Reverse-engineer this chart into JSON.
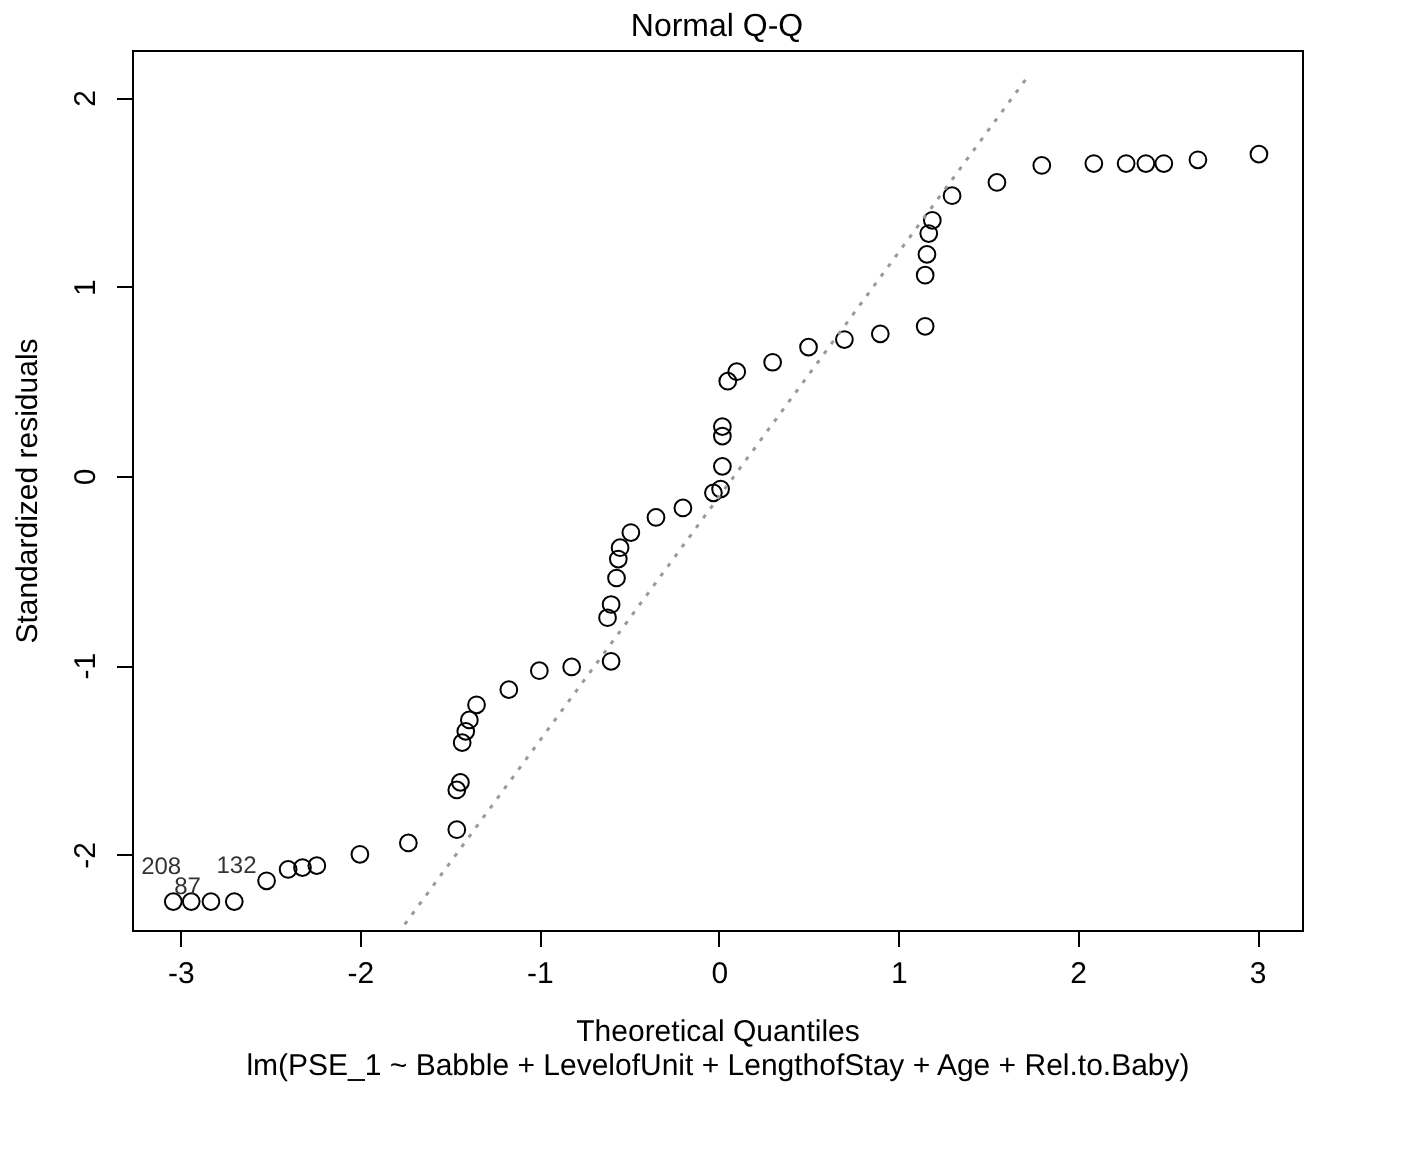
{
  "chart_data": {
    "type": "scatter",
    "title": "Normal Q-Q",
    "xlabel": "Theoretical Quantiles",
    "ylabel": "Standardized residuals",
    "xlim": [
      -3.27,
      3.25
    ],
    "ylim": [
      -2.4,
      2.25
    ],
    "xticks": [
      -3,
      -2,
      -1,
      0,
      1,
      2,
      3
    ],
    "yticks": [
      -2,
      -1,
      0,
      1,
      2
    ],
    "grid": false,
    "legend": false,
    "marker": "circle",
    "series": [
      {
        "color": "#000000",
        "x": [
          -3.04,
          -2.94,
          -2.83,
          -2.7,
          -2.52,
          -2.4,
          -2.32,
          -2.24,
          -2.0,
          -1.73,
          -1.46,
          -1.46,
          -1.44,
          -1.43,
          -1.41,
          -1.39,
          -1.35,
          -1.17,
          -1.0,
          -0.82,
          -0.6,
          -0.62,
          -0.6,
          -0.57,
          -0.56,
          -0.55,
          -0.49,
          -0.35,
          -0.2,
          -0.03,
          0.01,
          0.02,
          0.02,
          0.02,
          0.05,
          0.1,
          0.3,
          0.5,
          0.7,
          0.9,
          1.15,
          1.15,
          1.16,
          1.17,
          1.19,
          1.3,
          1.55,
          1.8,
          2.09,
          2.27,
          2.38,
          2.48,
          2.67,
          3.01
        ],
        "values": [
          -2.25,
          -2.25,
          -2.25,
          -2.25,
          -2.14,
          -2.08,
          -2.07,
          -2.06,
          -2.0,
          -1.94,
          -1.87,
          -1.66,
          -1.62,
          -1.41,
          -1.35,
          -1.29,
          -1.21,
          -1.13,
          -1.03,
          -1.01,
          -0.98,
          -0.75,
          -0.68,
          -0.54,
          -0.44,
          -0.38,
          -0.3,
          -0.22,
          -0.17,
          -0.09,
          -0.07,
          0.05,
          0.21,
          0.26,
          0.5,
          0.55,
          0.6,
          0.68,
          0.72,
          0.75,
          0.79,
          1.06,
          1.17,
          1.28,
          1.35,
          1.48,
          1.55,
          1.64,
          1.65,
          1.65,
          1.65,
          1.65,
          1.67,
          1.7
        ]
      },
      {
        "type": "line",
        "marker": "none",
        "color": "#999999",
        "line_style": "dotted",
        "x": [
          -1.75,
          1.73
        ],
        "values": [
          -2.37,
          2.12
        ]
      }
    ],
    "annotations": [
      {
        "text": "132",
        "x": -2.52,
        "y": -2.14
      },
      {
        "text": "208",
        "x": -2.94,
        "y": -2.25
      },
      {
        "text": "87",
        "x": -2.83,
        "y": -2.25
      },
      "lm(PSE_1 ~ Babble + LevelofUnit + LengthofStay + Age + Rel.to.Baby)"
    ]
  }
}
